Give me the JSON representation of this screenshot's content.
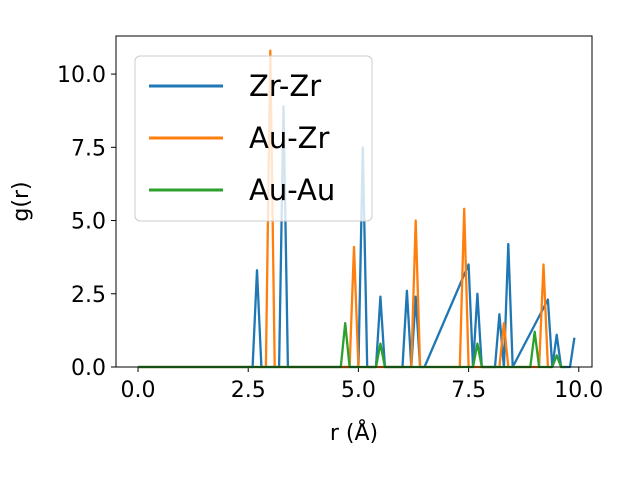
{
  "chart_data": {
    "type": "line",
    "xlabel": "r (Å)",
    "ylabel": "g(r)",
    "xlim": [
      -0.5,
      10.3
    ],
    "ylim": [
      0,
      11.3
    ],
    "xticks": [
      0.0,
      2.5,
      5.0,
      7.5,
      10.0
    ],
    "xtick_labels": [
      "0.0",
      "2.5",
      "5.0",
      "7.5",
      "10.0"
    ],
    "yticks": [
      0.0,
      2.5,
      5.0,
      7.5,
      10.0
    ],
    "ytick_labels": [
      "0.0",
      "2.5",
      "5.0",
      "7.5",
      "10.0"
    ],
    "grid": false,
    "legend_position": "top-left",
    "series": [
      {
        "name": "Zr-Zr",
        "color": "#1f77b4",
        "x": [
          0,
          2.6,
          2.7,
          2.8,
          3.2,
          3.3,
          3.4,
          5.0,
          5.1,
          5.2,
          5.4,
          5.5,
          5.6,
          6.0,
          6.1,
          6.2,
          6.3,
          6.4,
          6.5,
          7.5,
          7.6,
          7.7,
          7.8,
          8.1,
          8.2,
          8.3,
          8.4,
          8.5,
          9.3,
          9.4,
          9.5,
          9.6,
          9.7,
          9.8,
          9.9
        ],
        "y": [
          0,
          0,
          3.3,
          0,
          0,
          8.9,
          0,
          0,
          7.5,
          0,
          0,
          2.4,
          0,
          0,
          2.6,
          0,
          2.4,
          0,
          0,
          3.5,
          0,
          2.5,
          0,
          0,
          1.8,
          0,
          4.2,
          0,
          2.3,
          0,
          1.1,
          0,
          0,
          0,
          1.0
        ]
      },
      {
        "name": "Au-Zr",
        "color": "#ff7f0e",
        "x": [
          0,
          2.9,
          3.0,
          3.1,
          4.8,
          4.9,
          5.0,
          6.2,
          6.3,
          6.4,
          7.3,
          7.4,
          7.5,
          8.2,
          8.3,
          8.4,
          9.1,
          9.2,
          9.3,
          9.4
        ],
        "y": [
          0,
          0,
          10.8,
          0,
          0,
          4.1,
          0,
          0,
          5.0,
          0,
          0,
          5.4,
          0,
          0,
          1.5,
          0,
          0,
          3.5,
          0,
          0
        ]
      },
      {
        "name": "Au-Au",
        "color": "#2ca02c",
        "x": [
          0,
          4.6,
          4.7,
          4.8,
          5.4,
          5.5,
          5.6,
          7.6,
          7.7,
          7.8,
          8.9,
          9.0,
          9.1,
          9.2,
          9.3,
          9.4,
          9.5,
          9.6,
          9.7
        ],
        "y": [
          0,
          0,
          1.5,
          0,
          0,
          0.8,
          0,
          0,
          0.8,
          0,
          0,
          1.2,
          0,
          0,
          0,
          0,
          0.4,
          0,
          0
        ]
      }
    ]
  }
}
